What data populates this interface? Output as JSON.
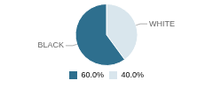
{
  "chart_data": {
    "type": "pie",
    "categories": [
      "WHITE",
      "BLACK"
    ],
    "values": [
      40.0,
      60.0
    ],
    "value_labels": [
      "40.0%",
      "60.0%"
    ],
    "colors": [
      "#d9e6ed",
      "#2e6f8e"
    ],
    "legend": "bottom"
  }
}
